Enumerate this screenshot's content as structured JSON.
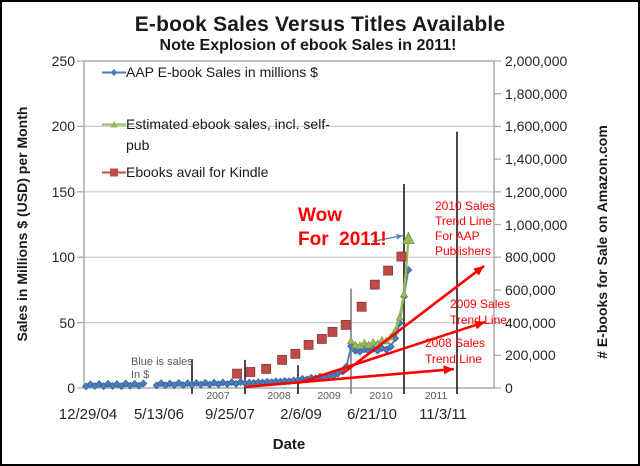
{
  "chart_data": {
    "type": "line",
    "title": "E-book Sales Versus Titles Available",
    "subtitle": "Note Explosion of ebook Sales in 2011!",
    "x_axis": {
      "label": "Date",
      "tick_labels": [
        "12/29/04",
        "5/13/06",
        "9/25/07",
        "2/6/09",
        "6/21/10",
        "11/3/11"
      ],
      "year_labels": [
        "2007",
        "2008",
        "2009",
        "2010",
        "2011"
      ]
    },
    "y_axis_left": {
      "label": "Sales in Millions $ (USD) per Month",
      "tick_labels": [
        "250",
        "200",
        "150",
        "100",
        "50",
        "0"
      ],
      "min": 0,
      "max": 250
    },
    "y_axis_right": {
      "label": "# E-books for Sale on Amazon.com",
      "tick_labels": [
        "2,000,000",
        "1,800,000",
        "1,600,000",
        "1,400,000",
        "1,200,000",
        "1,000,000",
        "800,000",
        "600,000",
        "400,000",
        "200,000",
        "0"
      ],
      "min": 0,
      "max": 2000000
    },
    "legend": [
      {
        "series": "aap",
        "marker": "diamond",
        "color": "#4a7ebb",
        "lines": [
          "AAP E-book Sales in millions $"
        ]
      },
      {
        "series": "estimated",
        "marker": "triangle",
        "color": "#9bbb59",
        "lines": [
          "Estimated ebook sales, incl. self-",
          "pub"
        ]
      },
      {
        "series": "kindle",
        "marker": "square",
        "color": "#be4b48",
        "lines": [
          "Ebooks avail for Kindle"
        ]
      }
    ],
    "series": [
      {
        "name": "AAP E-book Sales in millions $",
        "axis": "left",
        "color": "#4a7ebb",
        "marker": "diamond",
        "points": [
          [
            2005.0,
            1.2
          ],
          [
            2005.083,
            2.8
          ],
          [
            2005.167,
            1.5
          ],
          [
            2005.25,
            3.0
          ],
          [
            2005.333,
            1.4
          ],
          [
            2005.417,
            3.2
          ],
          [
            2005.5,
            1.6
          ],
          [
            2005.583,
            3.0
          ],
          [
            2005.667,
            1.4
          ],
          [
            2005.75,
            3.4
          ],
          [
            2005.833,
            1.8
          ],
          [
            2005.917,
            3.2
          ],
          [
            2006.0,
            1.8
          ],
          [
            2006.083,
            3.4
          ],
          [
            2006.167,
            null
          ],
          [
            2006.25,
            null
          ],
          [
            2006.333,
            2.0
          ],
          [
            2006.417,
            3.6
          ],
          [
            2006.5,
            2.0
          ],
          [
            2006.583,
            3.4
          ],
          [
            2006.667,
            2.2
          ],
          [
            2006.75,
            3.8
          ],
          [
            2006.833,
            2.2
          ],
          [
            2006.917,
            3.6
          ],
          [
            2007.0,
            2.4
          ],
          [
            2007.083,
            3.8
          ],
          [
            2007.167,
            2.6
          ],
          [
            2007.25,
            4.0
          ],
          [
            2007.333,
            2.6
          ],
          [
            2007.417,
            4.0
          ],
          [
            2007.5,
            2.8
          ],
          [
            2007.583,
            4.2
          ],
          [
            2007.667,
            3.0
          ],
          [
            2007.75,
            4.4
          ],
          [
            2007.833,
            3.2
          ],
          [
            2007.917,
            4.6
          ],
          [
            2008.0,
            3.6
          ],
          [
            2008.083,
            4.1
          ],
          [
            2008.167,
            3.9
          ],
          [
            2008.25,
            4.4
          ],
          [
            2008.333,
            4.2
          ],
          [
            2008.417,
            4.7
          ],
          [
            2008.5,
            4.5
          ],
          [
            2008.583,
            5.1
          ],
          [
            2008.667,
            4.8
          ],
          [
            2008.75,
            5.4
          ],
          [
            2008.833,
            5.2
          ],
          [
            2008.917,
            5.8
          ],
          [
            2009.0,
            6.2
          ],
          [
            2009.083,
            7.0
          ],
          [
            2009.167,
            6.6
          ],
          [
            2009.25,
            7.8
          ],
          [
            2009.333,
            7.4
          ],
          [
            2009.417,
            8.6
          ],
          [
            2009.5,
            8.2
          ],
          [
            2009.583,
            9.6
          ],
          [
            2009.667,
            9.2
          ],
          [
            2009.75,
            11.0
          ],
          [
            2009.833,
            13.0
          ],
          [
            2009.917,
            16.5
          ],
          [
            2010.0,
            31.9
          ],
          [
            2010.083,
            28.5
          ],
          [
            2010.167,
            27.8
          ],
          [
            2010.25,
            29.5
          ],
          [
            2010.333,
            28.2
          ],
          [
            2010.417,
            29.8
          ],
          [
            2010.5,
            28.6
          ],
          [
            2010.583,
            30.5
          ],
          [
            2010.667,
            29.3
          ],
          [
            2010.75,
            31.5
          ],
          [
            2010.833,
            38.0
          ],
          [
            2010.917,
            49.5
          ],
          [
            2011.0,
            69.9
          ],
          [
            2011.083,
            90.3
          ]
        ]
      },
      {
        "name": "Estimated ebook sales, incl. self-pub",
        "axis": "left",
        "color": "#9bbb59",
        "marker": "triangle",
        "end_arrow": true,
        "points": [
          [
            2010.0,
            36
          ],
          [
            2010.083,
            33
          ],
          [
            2010.167,
            32.5
          ],
          [
            2010.25,
            34.5
          ],
          [
            2010.333,
            33
          ],
          [
            2010.417,
            35
          ],
          [
            2010.5,
            34
          ],
          [
            2010.583,
            36.5
          ],
          [
            2010.667,
            36
          ],
          [
            2010.75,
            39
          ],
          [
            2010.833,
            44
          ],
          [
            2010.917,
            54
          ],
          [
            2011.0,
            72
          ],
          [
            2011.083,
            113.5
          ]
        ]
      },
      {
        "name": "Ebooks avail for Kindle",
        "axis": "right",
        "color": "#be4b48",
        "marker": "square",
        "points": [
          [
            2007.85,
            88000
          ],
          [
            2008.1,
            98000
          ],
          [
            2008.4,
            117000
          ],
          [
            2008.7,
            172000
          ],
          [
            2008.95,
            209000
          ],
          [
            2009.2,
            264000
          ],
          [
            2009.45,
            300000
          ],
          [
            2009.65,
            343000
          ],
          [
            2009.9,
            386000
          ],
          [
            2010.2,
            497000
          ],
          [
            2010.45,
            632000
          ],
          [
            2010.7,
            718000
          ],
          [
            2010.95,
            804000
          ]
        ]
      }
    ],
    "year_lines": [
      {
        "year": 2007,
        "x": 2007.0,
        "top_value": 22.0,
        "color": "#1a1a1a"
      },
      {
        "year": 2008,
        "x": 2008.0,
        "top_value": 21.5,
        "color": "#1a1a1a"
      },
      {
        "year": 2009,
        "x": 2009.0,
        "top_value": 17.5,
        "color": "#1a1a1a"
      },
      {
        "year": 2010,
        "x": 2010.0,
        "top_value": 76.0,
        "color": "#7f7f7f"
      },
      {
        "year": 2011,
        "x": 2011.0,
        "top_value": 156.0,
        "color": "#1a1a1a"
      },
      {
        "year": 2012,
        "x": 2012.0,
        "top_value": 196.0,
        "color": "#1a1a1a"
      }
    ],
    "trend_arrows": [
      {
        "id": "trend-2008",
        "from": [
          2008.0,
          0.8
        ],
        "to": [
          2011.94,
          14.5
        ],
        "color": "#fe0000"
      },
      {
        "id": "trend-2009",
        "from": [
          2009.0,
          3.8
        ],
        "to": [
          2012.53,
          50.5
        ],
        "color": "#fe0000"
      },
      {
        "id": "trend-2010",
        "from": [
          2009.83,
          10.7
        ],
        "to": [
          2012.51,
          93.3
        ],
        "color": "#fe0000"
      }
    ],
    "pointer_arrow": {
      "id": "wow-arrow",
      "from": [
        2010.4,
        112.0
      ],
      "to": [
        2010.98,
        116.5
      ],
      "color": "#5b87bf"
    },
    "annotations": {
      "wow": {
        "lines": [
          "Wow",
          "For  2011!"
        ],
        "color": "#ff0000"
      },
      "trend2010": {
        "lines": [
          "2010 Sales",
          "Trend Line",
          "For AAP",
          "Publishers"
        ],
        "color": "#ff0000"
      },
      "trend2009": {
        "lines": [
          "2009 Sales",
          "Trend Line"
        ],
        "color": "#ff0000"
      },
      "trend2008": {
        "lines": [
          "2008 Sales",
          "Trend Line"
        ],
        "color": "#ff0000"
      },
      "blue_note": {
        "lines": [
          "Blue is sales",
          "In $"
        ],
        "color": "#595959"
      }
    },
    "axis_color": "#a6a6a6",
    "grid_color": "#c9c9c9"
  }
}
